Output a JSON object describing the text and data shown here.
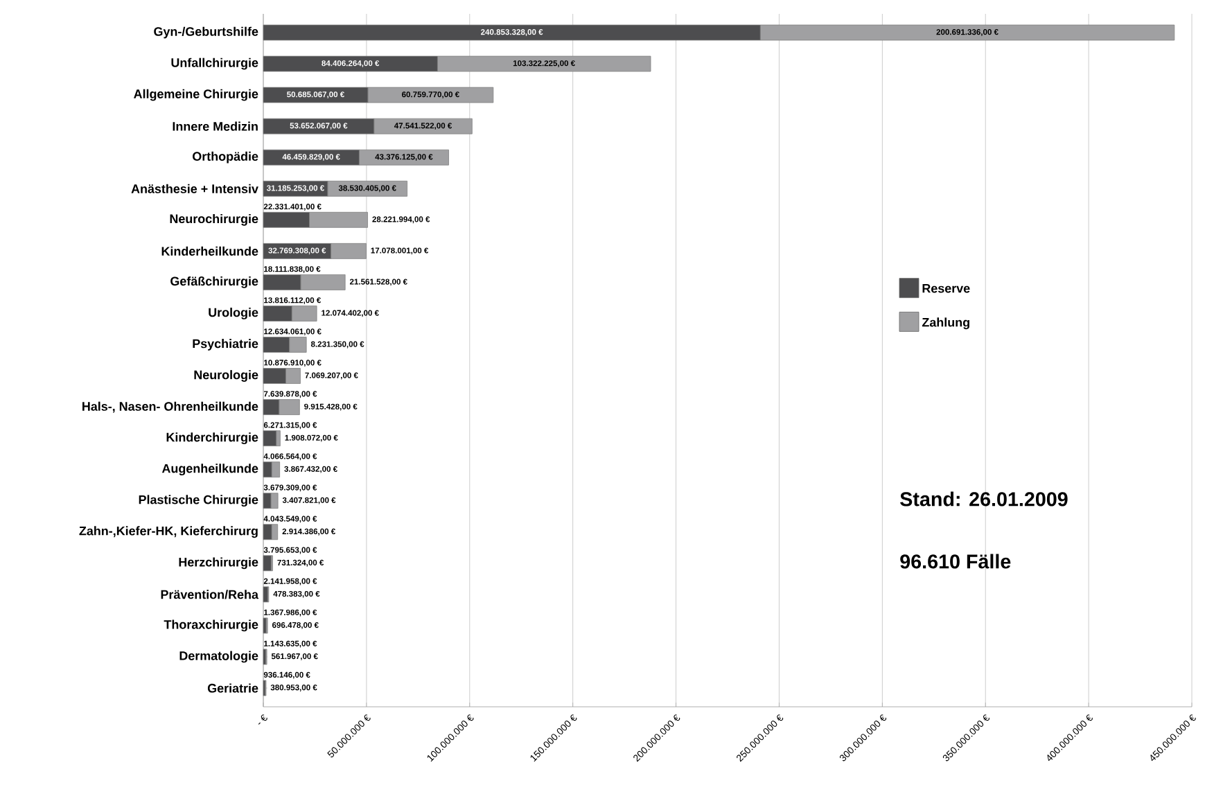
{
  "chart_data": {
    "type": "bar",
    "orientation": "horizontal",
    "stacked": true,
    "categories": [
      "Gyn-/Geburtshilfe",
      "Unfallchirurgie",
      "Allgemeine Chirurgie",
      "Innere Medizin",
      "Orthopädie",
      "Anästhesie + Intensiv",
      "Neurochirurgie",
      "Kinderheilkunde",
      "Gefäßchirurgie",
      "Urologie",
      "Psychiatrie",
      "Neurologie",
      "Hals-, Nasen- Ohrenheilkunde",
      "Kinderchirurgie",
      "Augenheilkunde",
      "Plastische Chirurgie",
      "Zahn-,Kiefer-HK, Kieferchirurg",
      "Herzchirurgie",
      "Prävention/Reha",
      "Thoraxchirurgie",
      "Dermatologie",
      "Geriatrie"
    ],
    "series": [
      {
        "name": "Reserve",
        "color": "#4d4d4f",
        "values": [
          240853328,
          84406264,
          50685067,
          53652067,
          46459829,
          31185253,
          22331401,
          32769308,
          18111838,
          13816112,
          12634061,
          10876910,
          7639878,
          6271315,
          4066564,
          3679309,
          4043549,
          3795653,
          2141958,
          1367986,
          1143635,
          936146
        ],
        "value_labels": [
          "240.853.328,00 €",
          "84.406.264,00 €",
          "50.685.067,00 €",
          "53.652.067,00 €",
          "46.459.829,00 €",
          "31.185.253,00 €",
          "22.331.401,00 €",
          "32.769.308,00 €",
          "18.111.838,00 €",
          "13.816.112,00 €",
          "12.634.061,00 €",
          "10.876.910,00 €",
          "7.639.878,00 €",
          "6.271.315,00 €",
          "4.066.564,00 €",
          "3.679.309,00 €",
          "4.043.549,00 €",
          "3.795.653,00 €",
          "2.141.958,00 €",
          "1.367.986,00 €",
          "1.143.635,00 €",
          "936.146,00 €"
        ]
      },
      {
        "name": "Zahlung",
        "color": "#a0a0a2",
        "values": [
          200691336,
          103322225,
          60759770,
          47541522,
          43376125,
          38530405,
          28221994,
          17078001,
          21561528,
          12074402,
          8231350,
          7069207,
          9915428,
          1908072,
          3867432,
          3407821,
          2914386,
          731324,
          478383,
          696478,
          561967,
          380953
        ],
        "value_labels": [
          "200.691.336,00 €",
          "103.322.225,00 €",
          "60.759.770,00 €",
          "47.541.522,00 €",
          "43.376.125,00 €",
          "38.530.405,00 €",
          "28.221.994,00 €",
          "17.078.001,00 €",
          "21.561.528,00 €",
          "12.074.402,00 €",
          "8.231.350,00 €",
          "7.069.207,00 €",
          "9.915.428,00 €",
          "1.908.072,00 €",
          "3.867.432,00 €",
          "3.407.821,00 €",
          "2.914.386,00 €",
          "731.324,00 €",
          "478.383,00 €",
          "696.478,00 €",
          "561.967,00 €",
          "380.953,00 €"
        ]
      }
    ],
    "xlim": [
      0,
      450000000
    ],
    "xticks": [
      {
        "value": 0,
        "label": "- €"
      },
      {
        "value": 50000000,
        "label": "50.000.000 €"
      },
      {
        "value": 100000000,
        "label": "100.000.000 €"
      },
      {
        "value": 150000000,
        "label": "150.000.000 €"
      },
      {
        "value": 200000000,
        "label": "200.000.000 €"
      },
      {
        "value": 250000000,
        "label": "250.000.000 €"
      },
      {
        "value": 300000000,
        "label": "300.000.000 €"
      },
      {
        "value": 350000000,
        "label": "350.000.000 €"
      },
      {
        "value": 400000000,
        "label": "400.000.000 €"
      },
      {
        "value": 450000000,
        "label": "450.000.000 €"
      }
    ],
    "grid": "x",
    "legend": "right",
    "annotations": [
      "Stand: 26.01.2009",
      "96.610 Fälle"
    ]
  }
}
